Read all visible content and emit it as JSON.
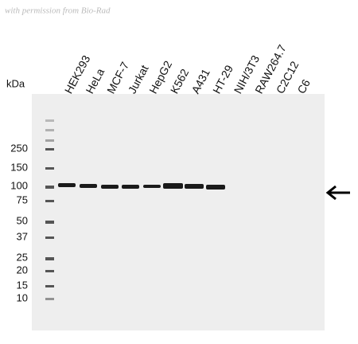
{
  "watermark": "with permission from Bio-Rad",
  "unit_label": "kDa",
  "lanes": [
    "HEK293",
    "HeLa",
    "MCF-7",
    "Jurkat",
    "HepG2",
    "K562",
    "A431",
    "HT-29",
    "NIH/3T3",
    "RAW264.7",
    "C2C12",
    "C6"
  ],
  "markers": [
    250,
    150,
    100,
    75,
    50,
    37,
    25,
    20,
    15,
    10
  ]
}
